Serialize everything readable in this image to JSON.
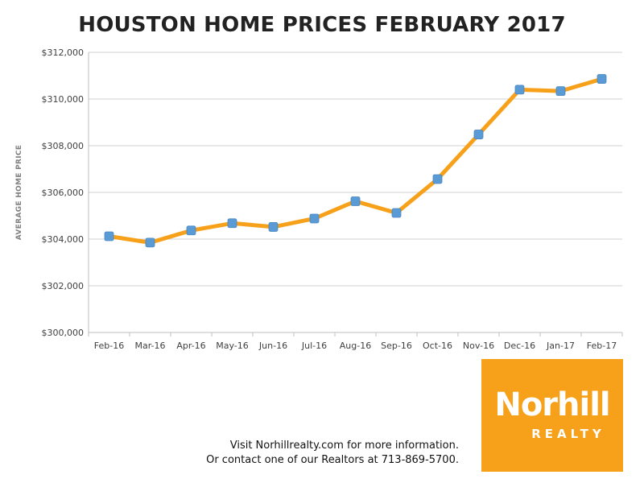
{
  "title": "HOUSTON HOME PRICES FEBRUARY 2017",
  "colors": {
    "line": "#f7a11b",
    "marker": "#5b9bd5",
    "grid": "#d0d0d0",
    "logo_bg": "#f7a11b"
  },
  "chart_data": {
    "type": "line",
    "title": "HOUSTON HOME PRICES FEBRUARY 2017",
    "xlabel": "",
    "ylabel": "AVERAGE HOME PRICE",
    "categories": [
      "Feb-16",
      "Mar-16",
      "Apr-16",
      "May-16",
      "Jun-16",
      "Jul-16",
      "Aug-16",
      "Sep-16",
      "Oct-16",
      "Nov-16",
      "Dec-16",
      "Jan-17",
      "Feb-17"
    ],
    "series": [
      {
        "values": [
          304120,
          303850,
          304370,
          304680,
          304520,
          304880,
          305620,
          305120,
          306570,
          308480,
          310400,
          310340,
          310860
        ]
      }
    ],
    "ylim": [
      300000,
      312000
    ],
    "yticks": [
      300000,
      302000,
      304000,
      306000,
      308000,
      310000,
      312000
    ],
    "ytick_labels": [
      "$300,000",
      "$302,000",
      "$304,000",
      "$306,000",
      "$308,000",
      "$310,000",
      "$312,000"
    ],
    "grid": true,
    "legend": "none"
  },
  "logo": {
    "name": "Norhill",
    "sub": "REALTY"
  },
  "contact": {
    "line1": "Visit Norhillrealty.com for more information.",
    "line2": "Or contact one of our Realtors at 713-869-5700."
  }
}
